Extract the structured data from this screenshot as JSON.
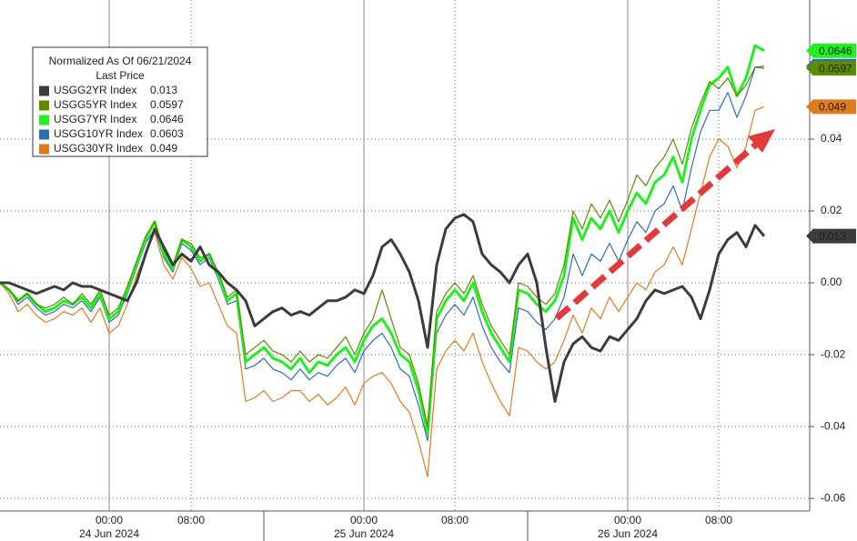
{
  "chart_data": {
    "type": "line",
    "legend_title": "Normalized As Of 06/21/2024",
    "legend_subtitle": "Last Price",
    "categories": [
      null,
      null,
      null,
      null,
      null,
      null,
      null,
      null,
      null,
      null,
      null,
      null,
      "00:00",
      null,
      null,
      null,
      null,
      null,
      null,
      null,
      null,
      "08:00",
      null,
      null,
      null,
      null,
      null,
      null,
      null,
      null,
      null,
      null,
      null,
      null,
      null,
      null,
      null,
      null,
      null,
      null,
      "00:00",
      null,
      null,
      null,
      null,
      null,
      null,
      null,
      null,
      null,
      "08:00",
      null,
      null,
      null,
      null,
      null,
      null,
      null,
      null,
      null,
      null,
      null,
      null,
      null,
      null,
      null,
      null,
      null,
      null,
      "00:00",
      null,
      null,
      null,
      null,
      null,
      null,
      null,
      null,
      null,
      "08:00",
      null,
      null,
      null,
      null,
      null
    ],
    "dates": [
      null,
      null,
      null,
      null,
      null,
      null,
      null,
      null,
      null,
      null,
      null,
      null,
      "24 Jun 2024",
      null,
      null,
      null,
      null,
      null,
      null,
      null,
      null,
      null,
      null,
      null,
      null,
      null,
      null,
      null,
      null,
      null,
      null,
      null,
      null,
      null,
      null,
      null,
      null,
      null,
      null,
      null,
      "25 Jun 2024",
      null,
      null,
      null,
      null,
      null,
      null,
      null,
      null,
      null,
      null,
      null,
      null,
      null,
      null,
      null,
      null,
      null,
      null,
      null,
      null,
      null,
      null,
      null,
      null,
      null,
      null,
      null,
      null,
      "26 Jun 2024",
      null,
      null,
      null,
      null,
      null,
      null,
      null,
      null,
      null,
      null,
      null,
      null,
      null,
      null,
      null
    ],
    "series": [
      {
        "name": "USGG2YR Index",
        "color": "#3c3c3c",
        "last_price": 0.013,
        "values": [
          0,
          0,
          -0.001,
          -0.002,
          -0.003,
          -0.002,
          -0.001,
          -0.002,
          0,
          -0.001,
          -0.001,
          -0.002,
          -0.003,
          -0.004,
          -0.005,
          0,
          0.008,
          0.015,
          0.01,
          0.005,
          0.008,
          0.006,
          0.01,
          0.005,
          0.003,
          0,
          -0.002,
          -0.005,
          -0.012,
          -0.01,
          -0.008,
          -0.007,
          -0.009,
          -0.008,
          -0.009,
          -0.007,
          -0.005,
          -0.005,
          -0.004,
          -0.002,
          -0.003,
          0.002,
          0.01,
          0.012,
          0.008,
          0.003,
          -0.005,
          -0.018,
          0.005,
          0.015,
          0.018,
          0.019,
          0.017,
          0.008,
          0.005,
          0.003,
          0,
          0.005,
          0.008,
          0,
          -0.018,
          -0.033,
          -0.022,
          -0.017,
          -0.015,
          -0.018,
          -0.019,
          -0.015,
          -0.016,
          -0.013,
          -0.01,
          -0.005,
          -0.002,
          -0.003,
          -0.002,
          -0.001,
          -0.004,
          -0.01,
          -0.002,
          0.008,
          0.012,
          0.014,
          0.01,
          0.016,
          0.013
        ]
      },
      {
        "name": "USGG5YR Index",
        "color": "#5b8c00",
        "last_price": 0.0597,
        "values": [
          0,
          -0.002,
          -0.005,
          -0.003,
          -0.006,
          -0.007,
          -0.006,
          -0.004,
          -0.006,
          -0.003,
          -0.006,
          -0.002,
          -0.009,
          -0.007,
          -0.001,
          0.006,
          0.013,
          0.017,
          0.009,
          0.005,
          0.012,
          0.011,
          0.007,
          0.008,
          0.003,
          -0.004,
          -0.002,
          -0.02,
          -0.018,
          -0.016,
          -0.019,
          -0.02,
          -0.022,
          -0.019,
          -0.022,
          -0.02,
          -0.021,
          -0.018,
          -0.015,
          -0.02,
          -0.014,
          -0.01,
          -0.002,
          -0.01,
          -0.018,
          -0.02,
          -0.028,
          -0.04,
          -0.008,
          -0.003,
          0,
          -0.003,
          0.002,
          -0.006,
          -0.012,
          -0.016,
          -0.02,
          0,
          -0.001,
          -0.004,
          -0.006,
          -0.003,
          0.005,
          0.02,
          0.015,
          0.022,
          0.018,
          0.023,
          0.017,
          0.023,
          0.03,
          0.027,
          0.032,
          0.035,
          0.04,
          0.033,
          0.043,
          0.05,
          0.056,
          0.054,
          0.057,
          0.052,
          0.055,
          0.06,
          0.0597
        ]
      },
      {
        "name": "USGG7YR Index",
        "color": "#22ee22",
        "last_price": 0.0646,
        "values": [
          0,
          -0.002,
          -0.005,
          -0.003,
          -0.006,
          -0.008,
          -0.007,
          -0.005,
          -0.006,
          -0.004,
          -0.007,
          -0.003,
          -0.01,
          -0.008,
          -0.002,
          0.005,
          0.012,
          0.017,
          0.008,
          0.004,
          0.012,
          0.01,
          0.006,
          0.008,
          0.002,
          -0.005,
          -0.003,
          -0.022,
          -0.02,
          -0.018,
          -0.021,
          -0.022,
          -0.024,
          -0.021,
          -0.025,
          -0.022,
          -0.023,
          -0.02,
          -0.018,
          -0.022,
          -0.016,
          -0.012,
          -0.01,
          -0.014,
          -0.02,
          -0.022,
          -0.03,
          -0.042,
          -0.01,
          -0.005,
          -0.002,
          -0.005,
          0,
          -0.008,
          -0.014,
          -0.018,
          -0.022,
          -0.002,
          -0.003,
          -0.006,
          -0.008,
          -0.005,
          0.002,
          0.018,
          0.012,
          0.018,
          0.015,
          0.02,
          0.014,
          0.02,
          0.025,
          0.022,
          0.028,
          0.03,
          0.035,
          0.028,
          0.04,
          0.048,
          0.055,
          0.057,
          0.06,
          0.052,
          0.057,
          0.066,
          0.0646
        ]
      },
      {
        "name": "USGG10YR Index",
        "color": "#2e6db4",
        "last_price": 0.0603,
        "values": [
          0,
          -0.002,
          -0.006,
          -0.004,
          -0.007,
          -0.009,
          -0.008,
          -0.006,
          -0.007,
          -0.005,
          -0.008,
          -0.004,
          -0.011,
          -0.009,
          -0.003,
          0.004,
          0.011,
          0.015,
          0.007,
          0.003,
          0.011,
          0.009,
          0.005,
          0.007,
          0.001,
          -0.006,
          -0.005,
          -0.024,
          -0.023,
          -0.021,
          -0.024,
          -0.025,
          -0.027,
          -0.024,
          -0.027,
          -0.025,
          -0.026,
          -0.023,
          -0.021,
          -0.025,
          -0.019,
          -0.016,
          -0.014,
          -0.018,
          -0.024,
          -0.026,
          -0.034,
          -0.044,
          -0.014,
          -0.009,
          -0.006,
          -0.009,
          -0.004,
          -0.012,
          -0.018,
          -0.022,
          -0.025,
          -0.007,
          -0.008,
          -0.011,
          -0.013,
          -0.01,
          -0.004,
          0.008,
          0.002,
          0.008,
          0.006,
          0.011,
          0.006,
          0.012,
          0.017,
          0.014,
          0.02,
          0.022,
          0.027,
          0.02,
          0.032,
          0.042,
          0.048,
          0.048,
          0.053,
          0.046,
          0.052,
          0.06,
          0.0603
        ]
      },
      {
        "name": "USGG30YR Index",
        "color": "#e07a1f",
        "last_price": 0.049,
        "values": [
          0,
          -0.003,
          -0.008,
          -0.006,
          -0.009,
          -0.011,
          -0.01,
          -0.008,
          -0.009,
          -0.007,
          -0.011,
          -0.007,
          -0.014,
          -0.012,
          -0.006,
          0.002,
          0.008,
          0.014,
          0.005,
          0.001,
          0.007,
          0.004,
          -0.001,
          0,
          -0.006,
          -0.012,
          -0.014,
          -0.033,
          -0.032,
          -0.03,
          -0.033,
          -0.032,
          -0.03,
          -0.03,
          -0.033,
          -0.031,
          -0.034,
          -0.032,
          -0.029,
          -0.034,
          -0.028,
          -0.026,
          -0.025,
          -0.028,
          -0.033,
          -0.036,
          -0.044,
          -0.054,
          -0.024,
          -0.019,
          -0.016,
          -0.019,
          -0.014,
          -0.022,
          -0.028,
          -0.033,
          -0.037,
          -0.018,
          -0.019,
          -0.022,
          -0.024,
          -0.022,
          -0.016,
          -0.009,
          -0.014,
          -0.007,
          -0.01,
          -0.004,
          -0.008,
          -0.004,
          0,
          -0.002,
          0.003,
          0.005,
          0.01,
          0.005,
          0.015,
          0.025,
          0.035,
          0.04,
          0.038,
          0.032,
          0.038,
          0.048,
          0.049
        ]
      }
    ],
    "ylim": [
      -0.0635,
      0.0787
    ],
    "yticks": [
      -0.06,
      -0.04,
      -0.02,
      {
        "value": 0,
        "label": "0.00"
      },
      0.02,
      0.04
    ],
    "grid": true
  }
}
